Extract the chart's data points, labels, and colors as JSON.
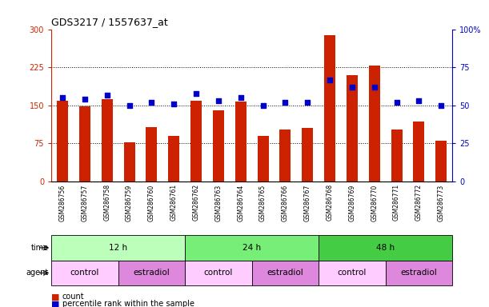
{
  "title": "GDS3217 / 1557637_at",
  "samples": [
    "GSM286756",
    "GSM286757",
    "GSM286758",
    "GSM286759",
    "GSM286760",
    "GSM286761",
    "GSM286762",
    "GSM286763",
    "GSM286764",
    "GSM286765",
    "GSM286766",
    "GSM286767",
    "GSM286768",
    "GSM286769",
    "GSM286770",
    "GSM286771",
    "GSM286772",
    "GSM286773"
  ],
  "counts": [
    160,
    148,
    162,
    78,
    107,
    90,
    160,
    140,
    158,
    90,
    103,
    105,
    288,
    210,
    228,
    102,
    118,
    80
  ],
  "percentile_ranks": [
    55,
    54,
    57,
    50,
    52,
    51,
    58,
    53,
    55,
    50,
    52,
    52,
    67,
    62,
    62,
    52,
    53,
    50
  ],
  "bar_color": "#cc2200",
  "dot_color": "#0000cc",
  "left_ylim": [
    0,
    300
  ],
  "right_ylim": [
    0,
    100
  ],
  "left_yticks": [
    0,
    75,
    150,
    225,
    300
  ],
  "right_yticks": [
    0,
    25,
    50,
    75,
    100
  ],
  "right_yticklabels": [
    "0",
    "25",
    "50",
    "75",
    "100%"
  ],
  "time_groups": [
    {
      "label": "12 h",
      "start": 0,
      "end": 6,
      "color": "#bbffbb"
    },
    {
      "label": "24 h",
      "start": 6,
      "end": 12,
      "color": "#77ee77"
    },
    {
      "label": "48 h",
      "start": 12,
      "end": 18,
      "color": "#44cc44"
    }
  ],
  "agent_groups": [
    {
      "label": "control",
      "start": 0,
      "end": 3,
      "color": "#ffccff"
    },
    {
      "label": "estradiol",
      "start": 3,
      "end": 6,
      "color": "#dd88dd"
    },
    {
      "label": "control",
      "start": 6,
      "end": 9,
      "color": "#ffccff"
    },
    {
      "label": "estradiol",
      "start": 9,
      "end": 12,
      "color": "#dd88dd"
    },
    {
      "label": "control",
      "start": 12,
      "end": 15,
      "color": "#ffccff"
    },
    {
      "label": "estradiol",
      "start": 15,
      "end": 18,
      "color": "#dd88dd"
    }
  ],
  "legend_count_label": "count",
  "legend_pct_label": "percentile rank within the sample",
  "time_label": "time",
  "agent_label": "agent",
  "left_axis_color": "#cc2200",
  "right_axis_color": "#0000cc",
  "grid_linestyle": ":",
  "grid_linewidth": 0.7,
  "grid_yticks": [
    75,
    150,
    225
  ],
  "bar_width": 0.5,
  "dot_size": 18,
  "sample_fontsize": 5.5,
  "tick_fontsize": 7,
  "title_fontsize": 9,
  "row_fontsize": 7.5,
  "label_row_fontsize": 7
}
